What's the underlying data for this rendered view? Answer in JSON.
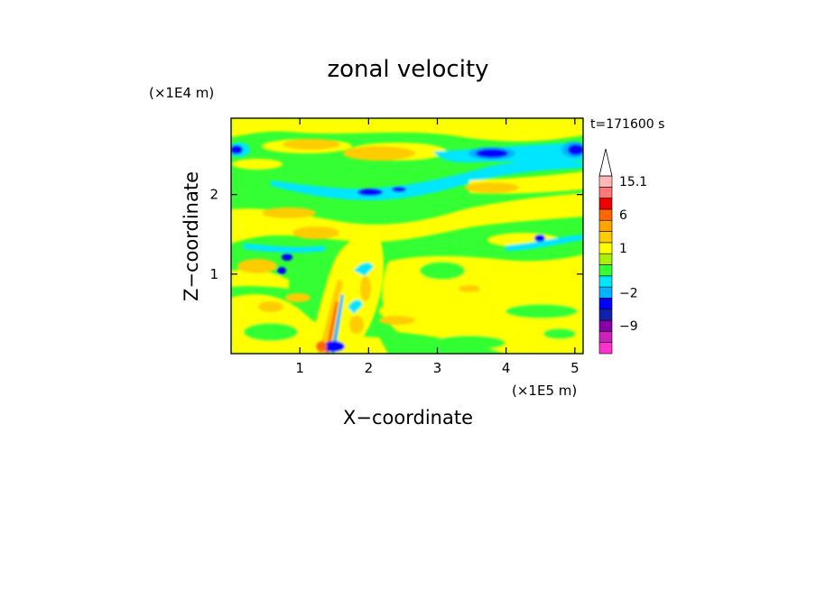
{
  "chart_data": {
    "type": "heatmap",
    "title": "zonal velocity",
    "xlabel": "X−coordinate",
    "ylabel": "Z−coordinate",
    "x_unit": "(×1E5 m)",
    "y_unit": "(×1E4 m)",
    "time_label": "t=171600 s",
    "xlim": [
      0,
      5.12
    ],
    "ylim": [
      0,
      2.96
    ],
    "x_ticks": [
      {
        "value": 1,
        "label": "1"
      },
      {
        "value": 2,
        "label": "2"
      },
      {
        "value": 3,
        "label": "3"
      },
      {
        "value": 4,
        "label": "4"
      },
      {
        "value": 5,
        "label": "5"
      }
    ],
    "y_ticks": [
      {
        "value": 1,
        "label": "1"
      },
      {
        "value": 2,
        "label": "2"
      }
    ],
    "colorbar": {
      "levels": [
        {
          "label": "",
          "color": "#ff33cc"
        },
        {
          "label": "",
          "color": "#cc22bb"
        },
        {
          "label": "−9",
          "color": "#8800aa"
        },
        {
          "label": "",
          "color": "#1122aa"
        },
        {
          "label": "",
          "color": "#0000ff"
        },
        {
          "label": "−2",
          "color": "#00b4ff"
        },
        {
          "label": "",
          "color": "#00e6ff"
        },
        {
          "label": "",
          "color": "#33ff33"
        },
        {
          "label": "",
          "color": "#aaf000"
        },
        {
          "label": "1",
          "color": "#ffff00"
        },
        {
          "label": "",
          "color": "#ffcc00"
        },
        {
          "label": "",
          "color": "#ffa500"
        },
        {
          "label": "6",
          "color": "#ff6600"
        },
        {
          "label": "",
          "color": "#ee0000"
        },
        {
          "label": "",
          "color": "#ff7777"
        },
        {
          "label": "15.1",
          "color": "#ffb8b8"
        }
      ]
    },
    "field_note_colors": {
      "background_green": "#33ff33",
      "yellow": "#ffff00",
      "orange": "#ffcc00",
      "cyan": "#00e6ff",
      "blue": "#0000ff"
    }
  }
}
